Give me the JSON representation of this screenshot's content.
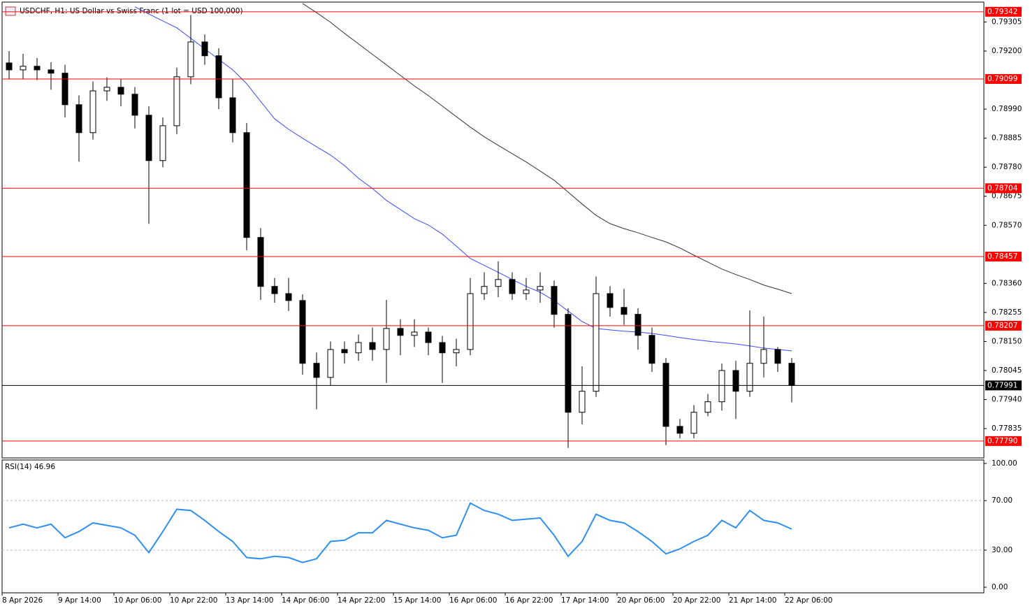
{
  "chart_data": {
    "type": "candlestick",
    "title": "USDCHF, H1: US Dollar vs Swiss Franc (1 lot = USD 100,000)",
    "open": [
      0.79157,
      0.79132,
      0.79145,
      0.79132,
      0.7912,
      0.79006,
      0.78905,
      0.79056,
      0.79069,
      0.79044,
      0.78968,
      0.78804,
      0.7893,
      0.79107,
      0.79233,
      0.79183,
      0.79031,
      0.78905,
      0.78526,
      0.78349,
      0.78323,
      0.78298,
      0.78071,
      0.7802,
      0.78121,
      0.78109,
      0.78146,
      0.78121,
      0.78197,
      0.78172,
      0.78184,
      0.78146,
      0.78109,
      0.78121,
      0.78323,
      0.78349,
      0.78374,
      0.78323,
      0.78336,
      0.78349,
      0.78248,
      0.77894,
      0.7797,
      0.78323,
      0.78273,
      0.78248,
      0.78172,
      0.78071,
      0.77843,
      0.77818,
      0.77894,
      0.77932,
      0.78045,
      0.7797,
      0.78071,
      0.78121,
      0.78071
    ],
    "high": [
      0.792,
      0.7919,
      0.79175,
      0.7916,
      0.7915,
      0.7904,
      0.7909,
      0.79105,
      0.791,
      0.7907,
      0.79,
      0.7896,
      0.7914,
      0.7933,
      0.7926,
      0.7921,
      0.791,
      0.7894,
      0.7856,
      0.7838,
      0.7838,
      0.7832,
      0.7811,
      0.7815,
      0.7815,
      0.78175,
      0.782,
      0.783,
      0.7823,
      0.7823,
      0.782,
      0.7817,
      0.7816,
      0.7838,
      0.784,
      0.7844,
      0.784,
      0.7838,
      0.784,
      0.7837,
      0.7827,
      0.7806,
      0.78385,
      0.7835,
      0.7834,
      0.7827,
      0.782,
      0.7809,
      0.7787,
      0.7792,
      0.7796,
      0.7807,
      0.7808,
      0.78262,
      0.7824,
      0.7813,
      0.7809
    ],
    "low": [
      0.791,
      0.791,
      0.79095,
      0.7906,
      0.7896,
      0.788,
      0.7888,
      0.7902,
      0.79,
      0.7892,
      0.78575,
      0.7878,
      0.789,
      0.7908,
      0.7915,
      0.7899,
      0.7887,
      0.7848,
      0.783,
      0.7829,
      0.7826,
      0.7803,
      0.77905,
      0.7799,
      0.7807,
      0.7808,
      0.7808,
      0.78,
      0.781,
      0.7813,
      0.781,
      0.78,
      0.7806,
      0.781,
      0.783,
      0.7831,
      0.783,
      0.783,
      0.7829,
      0.782,
      0.77765,
      0.7785,
      0.7795,
      0.7824,
      0.7821,
      0.7812,
      0.7804,
      0.77775,
      0.778,
      0.778,
      0.7788,
      0.779,
      0.7787,
      0.7795,
      0.7802,
      0.7804,
      0.7793
    ],
    "close": [
      0.79132,
      0.79145,
      0.79132,
      0.7912,
      0.79006,
      0.78905,
      0.79056,
      0.79069,
      0.79044,
      0.78968,
      0.78804,
      0.7893,
      0.79107,
      0.79233,
      0.79183,
      0.79031,
      0.78905,
      0.78526,
      0.78349,
      0.78323,
      0.78298,
      0.78071,
      0.7802,
      0.78121,
      0.78109,
      0.78146,
      0.78121,
      0.78197,
      0.78172,
      0.78184,
      0.78146,
      0.78109,
      0.78121,
      0.78323,
      0.78349,
      0.78374,
      0.78323,
      0.78336,
      0.78349,
      0.78248,
      0.77894,
      0.7797,
      0.78323,
      0.78273,
      0.78248,
      0.78172,
      0.78071,
      0.77843,
      0.77818,
      0.77894,
      0.77932,
      0.78045,
      0.7797,
      0.78071,
      0.78121,
      0.78071,
      0.77991
    ],
    "ylim": [
      0.77729,
      0.79377
    ],
    "yticks": [
      {
        "value": 0.79305,
        "label": "0.79305"
      },
      {
        "value": 0.792,
        "label": "0.79200"
      },
      {
        "value": 0.7899,
        "label": "0.78990"
      },
      {
        "value": 0.78885,
        "label": "0.78885"
      },
      {
        "value": 0.7878,
        "label": "0.78780"
      },
      {
        "value": 0.78675,
        "label": "0.78675"
      },
      {
        "value": 0.7857,
        "label": "0.78570"
      },
      {
        "value": 0.7836,
        "label": "0.78360"
      },
      {
        "value": 0.78255,
        "label": "0.78255"
      },
      {
        "value": 0.7815,
        "label": "0.78150"
      },
      {
        "value": 0.78045,
        "label": "0.78045"
      },
      {
        "value": 0.7794,
        "label": "0.77940"
      },
      {
        "value": 0.77835,
        "label": "0.77835"
      }
    ],
    "levels": [
      {
        "value": 0.79342,
        "label": "0.79342"
      },
      {
        "value": 0.79099,
        "label": "0.79099"
      },
      {
        "value": 0.78704,
        "label": "0.78704"
      },
      {
        "value": 0.78457,
        "label": "0.78457"
      },
      {
        "value": 0.78207,
        "label": "0.78207"
      },
      {
        "value": 0.7779,
        "label": "0.77790"
      }
    ],
    "level_color": "#ff0000",
    "current": {
      "value": 0.77991,
      "label": "0.77991"
    },
    "moving_averages": [
      {
        "color": "#3a4bff",
        "values": [
          null,
          null,
          null,
          null,
          null,
          null,
          null,
          null,
          null,
          0.7936,
          0.79334,
          0.79309,
          0.79284,
          0.79246,
          0.79208,
          0.7917,
          0.79132,
          0.79082,
          0.79018,
          0.78955,
          0.78917,
          0.78885,
          0.78854,
          0.78824,
          0.78786,
          0.7874,
          0.78703,
          0.7866,
          0.78627,
          0.78594,
          0.78571,
          0.78538,
          0.78495,
          0.7845,
          0.78425,
          0.784,
          0.78374,
          0.78349,
          0.78328,
          0.78298,
          0.7826,
          0.78222,
          0.78197,
          0.78192,
          0.78187,
          0.78184,
          0.78179,
          0.78172,
          0.78164,
          0.78157,
          0.78151,
          0.78146,
          0.78141,
          0.78134,
          0.78126,
          0.78121,
          0.78116
        ]
      },
      {
        "color": "#333333",
        "values": [
          null,
          null,
          null,
          null,
          null,
          null,
          null,
          null,
          null,
          null,
          null,
          null,
          null,
          null,
          null,
          null,
          null,
          null,
          null,
          null,
          null,
          0.79372,
          0.79339,
          0.79304,
          0.79264,
          0.79226,
          0.79188,
          0.7915,
          0.79112,
          0.79074,
          0.79039,
          0.79001,
          0.78963,
          0.78925,
          0.7889,
          0.78859,
          0.78829,
          0.78799,
          0.78766,
          0.78733,
          0.7869,
          0.78647,
          0.78606,
          0.78576,
          0.78558,
          0.78543,
          0.78526,
          0.7851,
          0.78488,
          0.78462,
          0.78437,
          0.78412,
          0.78392,
          0.78374,
          0.78354,
          0.78339,
          0.78323
        ]
      }
    ],
    "x_labels": [
      "8 Apr 2026",
      "9 Apr 14:00",
      "10 Apr 06:00",
      "10 Apr 22:00",
      "13 Apr 14:00",
      "14 Apr 06:00",
      "14 Apr 22:00",
      "15 Apr 14:00",
      "16 Apr 06:00",
      "16 Apr 22:00",
      "17 Apr 14:00",
      "20 Apr 06:00",
      "20 Apr 22:00",
      "21 Apr 14:00",
      "22 Apr 06:00"
    ],
    "rsi": {
      "title": "RSI(14) 46.96",
      "color": "#2f8fef",
      "values": [
        48,
        51,
        48,
        51,
        40,
        45,
        52,
        50,
        48,
        42,
        28,
        45,
        63,
        62,
        54,
        45,
        37,
        24,
        23,
        25,
        24,
        20,
        23,
        37,
        38,
        44,
        44,
        54,
        51,
        48,
        46,
        40,
        42,
        68,
        62,
        59,
        54,
        55,
        56,
        42,
        25,
        37,
        59,
        54,
        52,
        45,
        37,
        27,
        31,
        37,
        42,
        54,
        48,
        62,
        54,
        52,
        46.96
      ],
      "ylim": [
        -4.5,
        102.8
      ],
      "yticks": [
        {
          "value": 100,
          "label": "100.00"
        },
        {
          "value": 70,
          "label": "70.00"
        },
        {
          "value": 30,
          "label": "30.00"
        },
        {
          "value": 0,
          "label": "0.00"
        }
      ]
    }
  }
}
